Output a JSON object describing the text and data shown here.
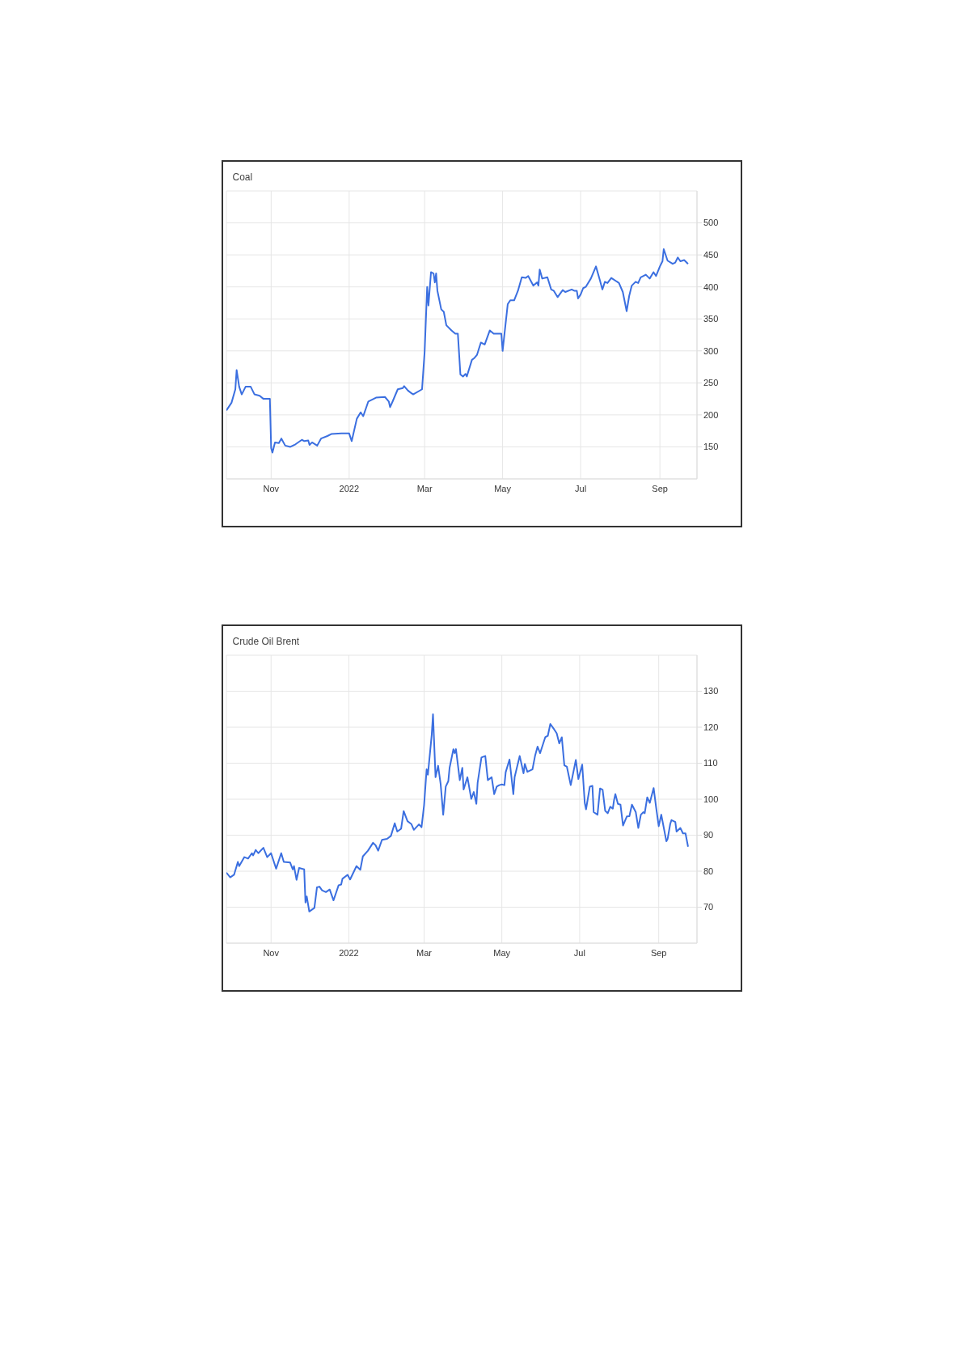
{
  "chart_data": [
    {
      "type": "line",
      "title": "Coal",
      "xlim": [
        "2021-09-27",
        "2022-09-30"
      ],
      "xticks": [
        {
          "value": "2021-11-01",
          "label": "Nov"
        },
        {
          "value": "2022-01-01",
          "label": "2022"
        },
        {
          "value": "2022-03-01",
          "label": "Mar"
        },
        {
          "value": "2022-05-01",
          "label": "May"
        },
        {
          "value": "2022-07-01",
          "label": "Jul"
        },
        {
          "value": "2022-09-01",
          "label": "Sep"
        }
      ],
      "ylim": [
        100,
        550
      ],
      "yticks": [
        150,
        200,
        250,
        300,
        350,
        400,
        450,
        500
      ],
      "grid": true,
      "series": [
        {
          "color": "#3b6fe0",
          "x": [
            "2021-09-27",
            "2021-10-01",
            "2021-10-04",
            "2021-10-05",
            "2021-10-07",
            "2021-10-09",
            "2021-10-12",
            "2021-10-16",
            "2021-10-19",
            "2021-10-23",
            "2021-10-26",
            "2021-10-31",
            "2021-11-01",
            "2021-11-02",
            "2021-11-04",
            "2021-11-07",
            "2021-11-09",
            "2021-11-12",
            "2021-11-16",
            "2021-11-20",
            "2021-11-25",
            "2021-11-27",
            "2021-11-30",
            "2021-12-01",
            "2021-12-03",
            "2021-12-07",
            "2021-12-10",
            "2021-12-15",
            "2021-12-18",
            "2021-12-26",
            "2022-01-01",
            "2022-01-03",
            "2022-01-07",
            "2022-01-10",
            "2022-01-12",
            "2022-01-16",
            "2022-01-22",
            "2022-01-29",
            "2022-02-01",
            "2022-02-02",
            "2022-02-04",
            "2022-02-08",
            "2022-02-12",
            "2022-02-13",
            "2022-02-16",
            "2022-02-20",
            "2022-02-27",
            "2022-03-01",
            "2022-03-03",
            "2022-03-04",
            "2022-03-06",
            "2022-03-08",
            "2022-03-09",
            "2022-03-10",
            "2022-03-11",
            "2022-03-14",
            "2022-03-16",
            "2022-03-18",
            "2022-03-22",
            "2022-03-25",
            "2022-03-27",
            "2022-03-29",
            "2022-03-31",
            "2022-04-02",
            "2022-04-03",
            "2022-04-07",
            "2022-04-09",
            "2022-04-11",
            "2022-04-14",
            "2022-04-17",
            "2022-04-21",
            "2022-04-24",
            "2022-04-30",
            "2022-05-01",
            "2022-05-05",
            "2022-05-07",
            "2022-05-10",
            "2022-05-13",
            "2022-05-16",
            "2022-05-19",
            "2022-05-21",
            "2022-05-25",
            "2022-05-28",
            "2022-05-29",
            "2022-05-30",
            "2022-06-01",
            "2022-06-05",
            "2022-06-08",
            "2022-06-10",
            "2022-06-13",
            "2022-06-17",
            "2022-06-19",
            "2022-06-24",
            "2022-06-26",
            "2022-06-28",
            "2022-06-29",
            "2022-07-01",
            "2022-07-03",
            "2022-07-05",
            "2022-07-09",
            "2022-07-13",
            "2022-07-16",
            "2022-07-18",
            "2022-07-20",
            "2022-07-22",
            "2022-07-25",
            "2022-07-31",
            "2022-08-03",
            "2022-08-06",
            "2022-08-08",
            "2022-08-10",
            "2022-08-13",
            "2022-08-15",
            "2022-08-17",
            "2022-08-21",
            "2022-08-24",
            "2022-08-27",
            "2022-08-29",
            "2022-09-01",
            "2022-09-03",
            "2022-09-04",
            "2022-09-07",
            "2022-09-11",
            "2022-09-13",
            "2022-09-15",
            "2022-09-17",
            "2022-09-20",
            "2022-09-23"
          ],
          "values": [
            207,
            219,
            240,
            270,
            244,
            232,
            244,
            244,
            232,
            230,
            225,
            225,
            148,
            141,
            157,
            156,
            163,
            152,
            150,
            154,
            161,
            159,
            160,
            153,
            157,
            152,
            163,
            167,
            170,
            171,
            171,
            159,
            194,
            204,
            198,
            221,
            227,
            228,
            221,
            212,
            221,
            240,
            242,
            245,
            238,
            232,
            240,
            298,
            400,
            371,
            423,
            421,
            407,
            421,
            394,
            365,
            361,
            340,
            332,
            327,
            327,
            263,
            260,
            264,
            260,
            286,
            289,
            294,
            313,
            310,
            332,
            327,
            327,
            300,
            373,
            379,
            379,
            394,
            415,
            414,
            417,
            402,
            407,
            402,
            427,
            413,
            415,
            396,
            394,
            384,
            395,
            392,
            396,
            394,
            394,
            382,
            388,
            398,
            400,
            413,
            432,
            411,
            396,
            408,
            406,
            414,
            406,
            392,
            362,
            386,
            402,
            408,
            406,
            415,
            419,
            413,
            423,
            417,
            432,
            440,
            459,
            441,
            436,
            438,
            446,
            440,
            442,
            436
          ]
        }
      ]
    },
    {
      "type": "line",
      "title": "Crude Oil Brent",
      "xlim": [
        "2021-09-27",
        "2022-10-01"
      ],
      "xticks": [
        {
          "value": "2021-11-01",
          "label": "Nov"
        },
        {
          "value": "2022-01-01",
          "label": "2022"
        },
        {
          "value": "2022-03-01",
          "label": "Mar"
        },
        {
          "value": "2022-05-01",
          "label": "May"
        },
        {
          "value": "2022-07-01",
          "label": "Jul"
        },
        {
          "value": "2022-09-01",
          "label": "Sep"
        }
      ],
      "ylim": [
        60,
        140
      ],
      "yticks": [
        70,
        80,
        90,
        100,
        110,
        120,
        130
      ],
      "grid": true,
      "series": [
        {
          "color": "#3b6fe0",
          "x": [
            "2021-09-27",
            "2021-09-30",
            "2021-10-03",
            "2021-10-06",
            "2021-10-07",
            "2021-10-11",
            "2021-10-14",
            "2021-10-17",
            "2021-10-18",
            "2021-10-20",
            "2021-10-22",
            "2021-10-26",
            "2021-10-29",
            "2021-11-01",
            "2021-11-05",
            "2021-11-09",
            "2021-11-11",
            "2021-11-16",
            "2021-11-18",
            "2021-11-19",
            "2021-11-21",
            "2021-11-23",
            "2021-11-27",
            "2021-11-28",
            "2021-11-29",
            "2021-12-01",
            "2021-12-05",
            "2021-12-07",
            "2021-12-09",
            "2021-12-11",
            "2021-12-14",
            "2021-12-17",
            "2021-12-20",
            "2021-12-24",
            "2021-12-26",
            "2021-12-27",
            "2021-12-31",
            "2022-01-02",
            "2022-01-07",
            "2022-01-10",
            "2022-01-12",
            "2022-01-16",
            "2022-01-20",
            "2022-01-22",
            "2022-01-24",
            "2022-01-27",
            "2022-01-31",
            "2022-02-03",
            "2022-02-06",
            "2022-02-08",
            "2022-02-11",
            "2022-02-13",
            "2022-02-16",
            "2022-02-19",
            "2022-02-21",
            "2022-02-25",
            "2022-02-27",
            "2022-03-01",
            "2022-03-03",
            "2022-03-04",
            "2022-03-07",
            "2022-03-08",
            "2022-03-10",
            "2022-03-12",
            "2022-03-14",
            "2022-03-16",
            "2022-03-18",
            "2022-03-20",
            "2022-03-21",
            "2022-03-24",
            "2022-03-25",
            "2022-03-26",
            "2022-03-29",
            "2022-03-31",
            "2022-04-01",
            "2022-04-04",
            "2022-04-07",
            "2022-04-09",
            "2022-04-11",
            "2022-04-12",
            "2022-04-15",
            "2022-04-18",
            "2022-04-20",
            "2022-04-23",
            "2022-04-25",
            "2022-04-27",
            "2022-04-29",
            "2022-05-01",
            "2022-05-03",
            "2022-05-04",
            "2022-05-07",
            "2022-05-10",
            "2022-05-11",
            "2022-05-15",
            "2022-05-18",
            "2022-05-19",
            "2022-05-21",
            "2022-05-25",
            "2022-05-27",
            "2022-05-29",
            "2022-05-31",
            "2022-06-04",
            "2022-06-06",
            "2022-06-08",
            "2022-06-11",
            "2022-06-13",
            "2022-06-15",
            "2022-06-17",
            "2022-06-19",
            "2022-06-21",
            "2022-06-24",
            "2022-06-28",
            "2022-06-30",
            "2022-07-03",
            "2022-07-05",
            "2022-07-06",
            "2022-07-09",
            "2022-07-11",
            "2022-07-12",
            "2022-07-15",
            "2022-07-17",
            "2022-07-19",
            "2022-07-21",
            "2022-07-23",
            "2022-07-25",
            "2022-07-27",
            "2022-07-28",
            "2022-07-29",
            "2022-07-31",
            "2022-08-02",
            "2022-08-04",
            "2022-08-07",
            "2022-08-09",
            "2022-08-11",
            "2022-08-14",
            "2022-08-16",
            "2022-08-18",
            "2022-08-20",
            "2022-08-21",
            "2022-08-23",
            "2022-08-25",
            "2022-08-28",
            "2022-08-30",
            "2022-09-01",
            "2022-09-03",
            "2022-09-07",
            "2022-09-08",
            "2022-09-10",
            "2022-09-11",
            "2022-09-14",
            "2022-09-15",
            "2022-09-18",
            "2022-09-20",
            "2022-09-22",
            "2022-09-24"
          ],
          "values": [
            79.6,
            78.3,
            79,
            82.6,
            81.4,
            83.9,
            83.5,
            85,
            84.4,
            85.9,
            85,
            86.5,
            83.9,
            85,
            80.7,
            85,
            82.6,
            82.4,
            80.5,
            81.4,
            77.6,
            80.9,
            80.5,
            71.3,
            73,
            68.8,
            69.8,
            75.5,
            75.7,
            74.7,
            74.2,
            74.9,
            71.9,
            76.1,
            76.3,
            77.9,
            79,
            77.7,
            81.4,
            80.4,
            84.1,
            85.7,
            87.9,
            87.2,
            85.7,
            88.7,
            89,
            89.8,
            93.3,
            91,
            91.8,
            96.7,
            93.9,
            93.1,
            91.5,
            93,
            92.2,
            98.3,
            108.3,
            106.8,
            117.9,
            123.6,
            106.1,
            109.3,
            104.2,
            95.7,
            103.5,
            105,
            108.7,
            113.9,
            112.8,
            113.9,
            105.3,
            108.7,
            102.7,
            106.1,
            100.1,
            102,
            98.7,
            104.6,
            111.6,
            112,
            105.3,
            106.1,
            101.4,
            103.5,
            103.9,
            104.1,
            103.9,
            107.5,
            111,
            101.4,
            106.1,
            112,
            107.2,
            109.8,
            107.6,
            108.3,
            112,
            114.6,
            112.8,
            117.2,
            117.6,
            120.9,
            119.4,
            118.3,
            115.5,
            117.2,
            109.4,
            109,
            103.9,
            110.9,
            105.6,
            109.6,
            99,
            97.2,
            103.5,
            103.7,
            96.4,
            95.7,
            103,
            102.6,
            96.8,
            96.1,
            97.9,
            97.4,
            99.8,
            101.4,
            98.7,
            98.5,
            92.7,
            95.2,
            95.3,
            98.5,
            96.4,
            92,
            95.7,
            96.4,
            96.1,
            100.5,
            99,
            103.1,
            97.6,
            92.5,
            95.7,
            88.3,
            89,
            93.1,
            94.2,
            93.7,
            91,
            92,
            90.5,
            90.5,
            86.8
          ]
        }
      ]
    }
  ]
}
